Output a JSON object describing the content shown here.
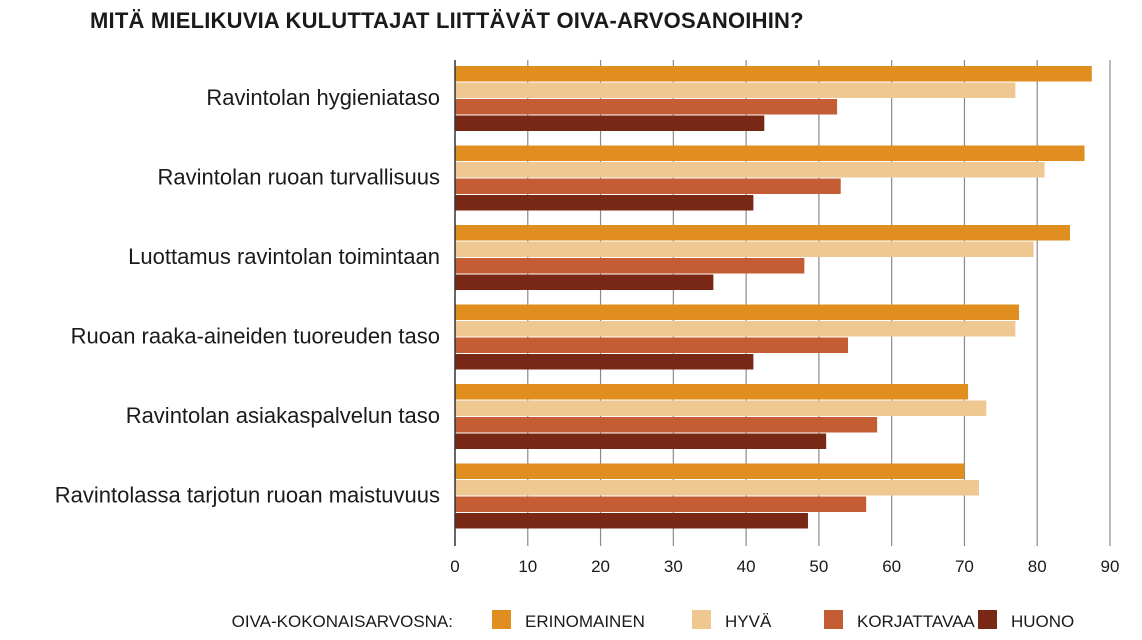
{
  "chart_data": {
    "type": "bar",
    "orientation": "horizontal",
    "title": "MITÄ MIELIKUVIA KULUTTAJAT LIITTÄVÄT OIVA-ARVOSANOIHIN?",
    "categories": [
      "Ravintolan hygieniataso",
      "Ravintolan ruoan turvallisuus",
      "Luottamus ravintolan toimintaan",
      "Ruoan raaka-aineiden tuoreuden taso",
      "Ravintolan asiakaspalvelun taso",
      "Ravintolassa tarjotun ruoan maistuvuus"
    ],
    "series": [
      {
        "name": "ERINOMAINEN",
        "color": "#e08e1f",
        "values": [
          87.5,
          86.5,
          84.5,
          77.5,
          70.5,
          70.0
        ]
      },
      {
        "name": "HYVÄ",
        "color": "#efc891",
        "values": [
          77.0,
          81.0,
          79.5,
          77.0,
          73.0,
          72.0
        ]
      },
      {
        "name": "KORJATTAVAA",
        "color": "#c45c34",
        "values": [
          52.5,
          53.0,
          48.0,
          54.0,
          58.0,
          56.5
        ]
      },
      {
        "name": "HUONO",
        "color": "#7a2816",
        "values": [
          42.5,
          41.0,
          35.5,
          41.0,
          51.0,
          48.5
        ]
      }
    ],
    "xlim": [
      0,
      90
    ],
    "xticks": [
      0,
      10,
      20,
      30,
      40,
      50,
      60,
      70,
      80,
      90
    ],
    "grid": true,
    "legend": {
      "title": "OIVA-KOKONAISARVOSNA:",
      "placement": "bottom"
    }
  }
}
